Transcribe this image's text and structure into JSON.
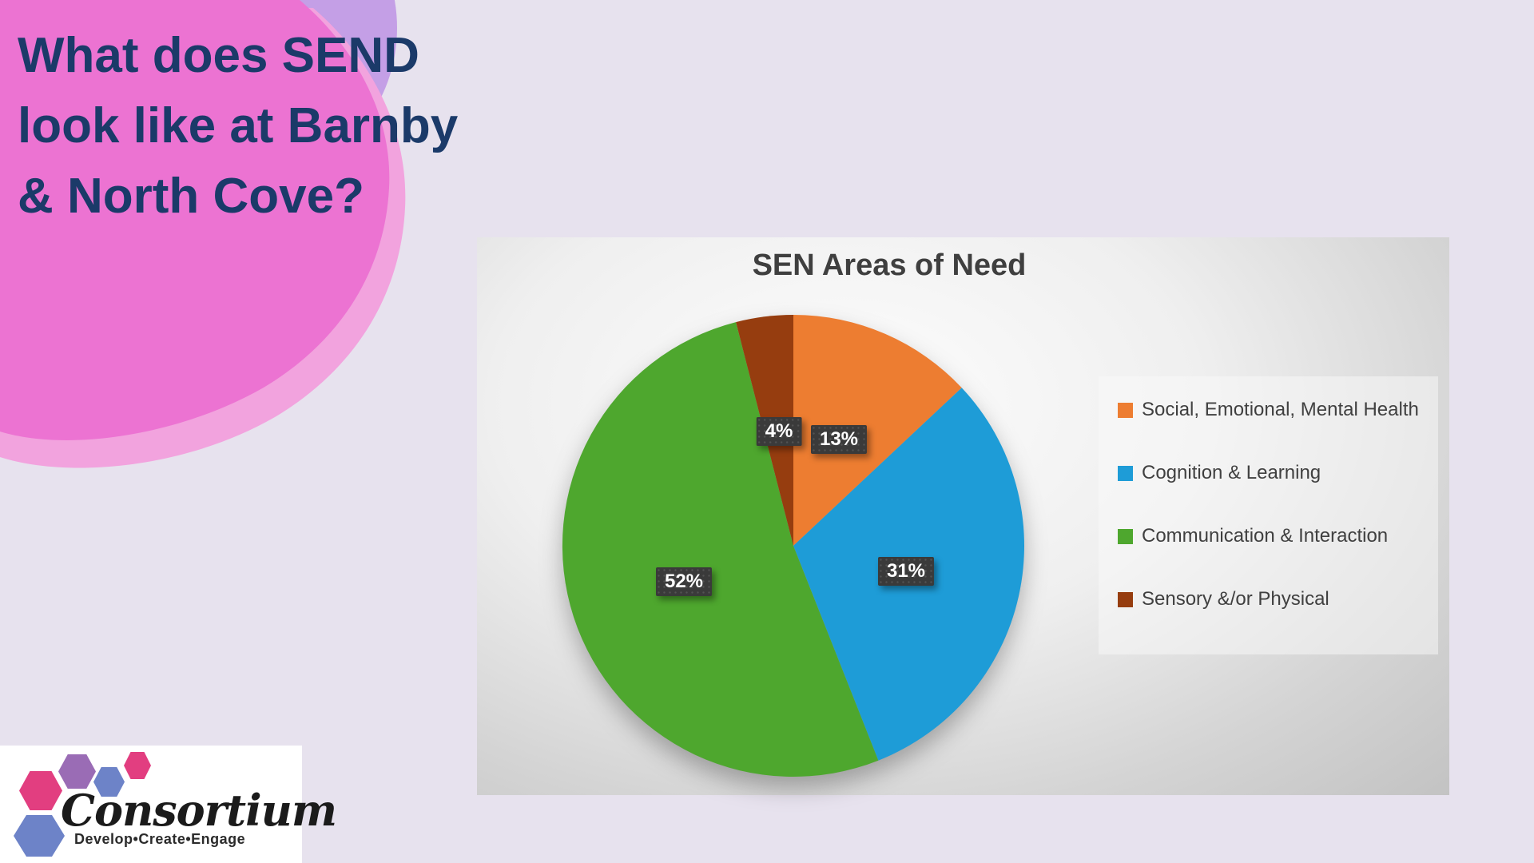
{
  "slide": {
    "title_lines": [
      "What does SEND",
      "look like at Barnby",
      "& North Cove?"
    ],
    "title_color": "#1b3a69",
    "background_color": "#e7e2ee",
    "blob_colors": {
      "main_pink": "#ec73d2",
      "light_pink_accent": "#f2a3de",
      "purple_accent": "#c49fe6"
    }
  },
  "chart_data": {
    "type": "pie",
    "title": "SEN Areas of Need",
    "slices": [
      {
        "label": "Social, Emotional, Mental Health",
        "value": 13,
        "color": "#ED7D31"
      },
      {
        "label": "Cognition & Learning",
        "value": 31,
        "color": "#1E9CD7"
      },
      {
        "label": "Communication & Interaction",
        "value": 52,
        "color": "#4EA72E"
      },
      {
        "label": "Sensory &/or Physical",
        "value": 4,
        "color": "#963D0F"
      }
    ],
    "start_angle_deg": 0,
    "direction": "clockwise",
    "data_label_format": "{value}%",
    "data_labels": [
      "13%",
      "31%",
      "52%",
      "4%"
    ],
    "legend_position": "right",
    "label_badge_color": "#3a3a3a",
    "label_text_color": "#ffffff",
    "title_color": "#3f3f3f"
  },
  "logo": {
    "name": "Consortium",
    "tagline": "Develop•Create•Engage",
    "hexagon_colors": {
      "pink": "#e23e80",
      "purple": "#9a6cb5",
      "blue": "#6d83c8"
    }
  }
}
